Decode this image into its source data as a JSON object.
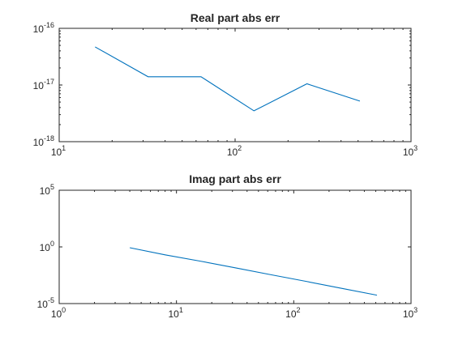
{
  "chart_data": [
    {
      "type": "line",
      "title": "Real part abs err",
      "xlabel": "",
      "ylabel": "",
      "xscale": "log",
      "yscale": "log",
      "xlim": [
        10,
        1000
      ],
      "ylim": [
        1e-18,
        1e-16
      ],
      "xtick_labels": [
        {
          "value": 10,
          "base": "10",
          "exp": "1"
        },
        {
          "value": 100,
          "base": "10",
          "exp": "2"
        },
        {
          "value": 1000,
          "base": "10",
          "exp": "3"
        }
      ],
      "ytick_labels": [
        {
          "value": 1e-18,
          "base": "10",
          "exp": "-18"
        },
        {
          "value": 1e-17,
          "base": "10",
          "exp": "-17"
        },
        {
          "value": 1e-16,
          "base": "10",
          "exp": "-16"
        }
      ],
      "grid": false,
      "series": [
        {
          "color": "#0072BD",
          "x": [
            16,
            32,
            64,
            128,
            256,
            512
          ],
          "y": [
            4.7e-17,
            1.4e-17,
            1.4e-17,
            3.5e-18,
            1.05e-17,
            5.2e-18
          ]
        }
      ]
    },
    {
      "type": "line",
      "title": "Imag part abs err",
      "xlabel": "",
      "ylabel": "",
      "xscale": "log",
      "yscale": "log",
      "xlim": [
        1,
        1000
      ],
      "ylim": [
        1e-05,
        100000.0
      ],
      "xtick_labels": [
        {
          "value": 1,
          "base": "10",
          "exp": "0"
        },
        {
          "value": 10,
          "base": "10",
          "exp": "1"
        },
        {
          "value": 100,
          "base": "10",
          "exp": "2"
        },
        {
          "value": 1000,
          "base": "10",
          "exp": "3"
        }
      ],
      "ytick_labels": [
        {
          "value": 1e-05,
          "base": "10",
          "exp": "-5"
        },
        {
          "value": 1,
          "base": "10",
          "exp": "0"
        },
        {
          "value": 100000.0,
          "base": "10",
          "exp": "5"
        }
      ],
      "grid": false,
      "series": [
        {
          "color": "#0072BD",
          "x": [
            4,
            8,
            16,
            32,
            64,
            128,
            256,
            512
          ],
          "y": [
            0.85,
            0.2,
            0.055,
            0.014,
            0.0035,
            0.0009,
            0.00022,
            5.5e-05
          ]
        }
      ]
    }
  ]
}
